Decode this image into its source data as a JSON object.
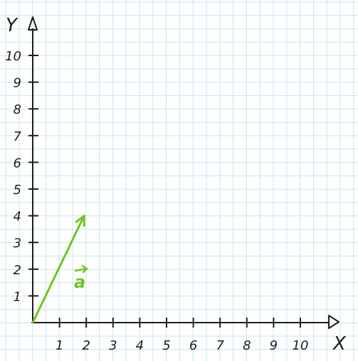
{
  "axes": {
    "x_label": "X",
    "y_label": "Y",
    "x_ticks": [
      "1",
      "2",
      "3",
      "4",
      "5",
      "6",
      "7",
      "8",
      "9",
      "10"
    ],
    "y_ticks": [
      "1",
      "2",
      "3",
      "4",
      "5",
      "6",
      "7",
      "8",
      "9",
      "10"
    ],
    "x_range": [
      0,
      11
    ],
    "y_range": [
      0,
      11
    ]
  },
  "vector": {
    "label": "a",
    "from": [
      0,
      0
    ],
    "to": [
      2,
      4
    ],
    "color": "#6cc624"
  },
  "colors": {
    "grid": "#c9e4f2",
    "axis": "#1e1e1e",
    "background": "#ffffff"
  }
}
